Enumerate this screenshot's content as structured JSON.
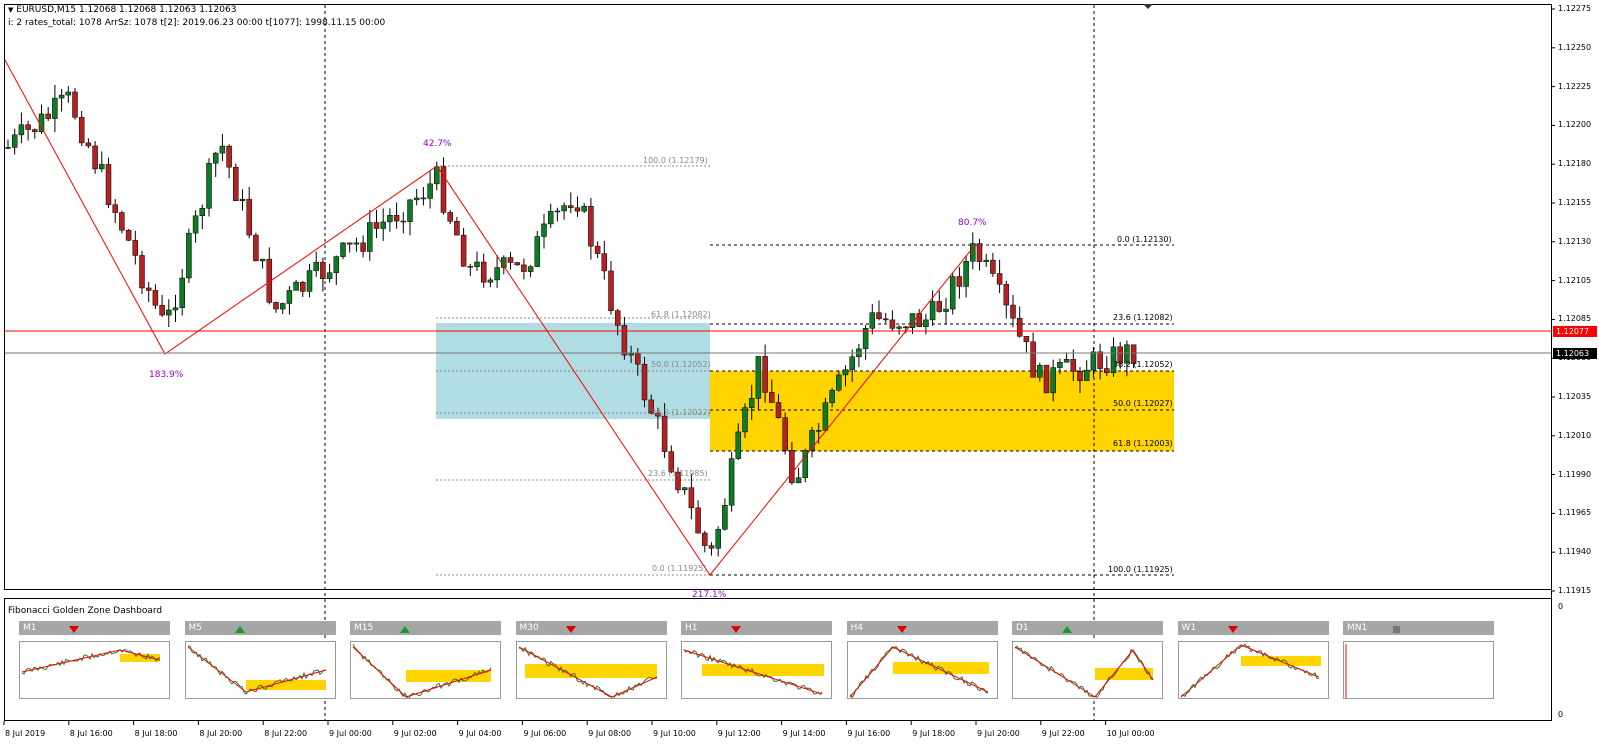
{
  "header": {
    "symbol_line": "EURUSD,M15  1.12068 1.12068 1.12063 1.12063",
    "info_line": "i: 2  rates_total: 1078  ArrSz: 1078  t[2]: 2019.06.23 00:00  t[1077]: 1998.11.15 00:00"
  },
  "price_axis": {
    "labels": [
      "1.12275",
      "1.12250",
      "1.12225",
      "1.12200",
      "1.12180",
      "1.12155",
      "1.12130",
      "1.12105",
      "1.12085",
      "1.12060",
      "1.12035",
      "1.12010",
      "1.11990",
      "1.11965",
      "1.11940",
      "1.11915"
    ],
    "current_bid": "1.12063",
    "red_line": "1.12077"
  },
  "time_axis": {
    "labels": [
      "8 Jul 2019",
      "8 Jul 16:00",
      "8 Jul 18:00",
      "8 Jul 20:00",
      "8 Jul 22:00",
      "9 Jul 00:00",
      "9 Jul 02:00",
      "9 Jul 04:00",
      "9 Jul 06:00",
      "9 Jul 08:00",
      "9 Jul 10:00",
      "9 Jul 12:00",
      "9 Jul 14:00",
      "9 Jul 16:00",
      "9 Jul 18:00",
      "9 Jul 20:00",
      "9 Jul 22:00",
      "10 Jul 00:00"
    ]
  },
  "zigzag_labels": {
    "high_1": "42.7%",
    "low_1": "183.9%",
    "high_2": "80.7%",
    "low_2": "217.1%"
  },
  "fib_old": {
    "levels": [
      "100.0 (1.12179)",
      "61.8 (1.12082)",
      "50.0 (1.12052)",
      "38.2 (1.12022)",
      "23.6 (1.11985)",
      "0.0 (1.11925)"
    ]
  },
  "fib_new": {
    "levels": [
      "0.0 (1.12130)",
      "23.6 (1.12082)",
      "38.2 (1.12052)",
      "50.0 (1.12027)",
      "61.8 (1.12003)",
      "100.0 (1.11925)"
    ]
  },
  "dashboard": {
    "title": "Fibonacci Golden Zone Dashboard",
    "subwindow_scale_top": "0",
    "subwindow_scale_bottom": "0",
    "panels": [
      {
        "tf": "M1",
        "trend": "down"
      },
      {
        "tf": "M5",
        "trend": "up"
      },
      {
        "tf": "M15",
        "trend": "up"
      },
      {
        "tf": "M30",
        "trend": "down"
      },
      {
        "tf": "H1",
        "trend": "down"
      },
      {
        "tf": "H4",
        "trend": "down"
      },
      {
        "tf": "D1",
        "trend": "up"
      },
      {
        "tf": "W1",
        "trend": "down"
      },
      {
        "tf": "MN1",
        "trend": "none"
      }
    ]
  },
  "colors": {
    "bull": "#0f7a25",
    "bear": "#b22222",
    "zigzag": "#ff0000",
    "golden": "#ffd400",
    "blue_zone": "#b0dde4",
    "violet": "#9400d3"
  }
}
